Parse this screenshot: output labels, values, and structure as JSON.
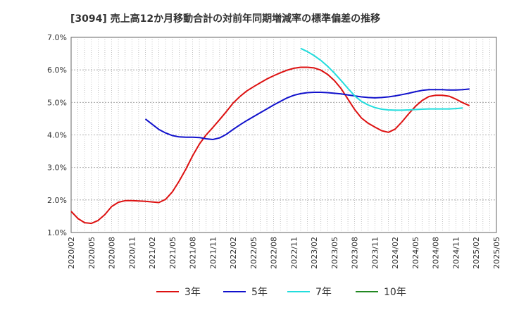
{
  "chart_data": {
    "type": "line",
    "title": "[3094]  売上高12か月移動合計の対前年同期増減率の標準偏差の推移",
    "xlabel": "",
    "ylabel": "",
    "ylim": [
      1.0,
      7.0
    ],
    "y_ticks": [
      "7.0%",
      "6.0%",
      "5.0%",
      "4.0%",
      "3.0%",
      "2.0%",
      "1.0%"
    ],
    "x_ticks": [
      "2020/02",
      "2020/05",
      "2020/08",
      "2020/11",
      "2021/02",
      "2021/05",
      "2021/08",
      "2021/11",
      "2022/02",
      "2022/05",
      "2022/08",
      "2022/11",
      "2023/02",
      "2023/05",
      "2023/08",
      "2023/11",
      "2024/02",
      "2024/05",
      "2024/08",
      "2024/11",
      "2025/02",
      "2025/05"
    ],
    "grid": true,
    "legend_position": "bottom",
    "series": [
      {
        "name": "3年",
        "color": "#dd1111",
        "points": [
          [
            "2020/02",
            1.65
          ],
          [
            "2020/03",
            1.43
          ],
          [
            "2020/04",
            1.3
          ],
          [
            "2020/05",
            1.28
          ],
          [
            "2020/06",
            1.37
          ],
          [
            "2020/07",
            1.55
          ],
          [
            "2020/08",
            1.8
          ],
          [
            "2020/09",
            1.93
          ],
          [
            "2020/10",
            1.98
          ],
          [
            "2020/11",
            1.98
          ],
          [
            "2020/12",
            1.97
          ],
          [
            "2021/01",
            1.96
          ],
          [
            "2021/02",
            1.94
          ],
          [
            "2021/03",
            1.92
          ],
          [
            "2021/04",
            2.02
          ],
          [
            "2021/05",
            2.25
          ],
          [
            "2021/06",
            2.58
          ],
          [
            "2021/07",
            2.95
          ],
          [
            "2021/08",
            3.36
          ],
          [
            "2021/09",
            3.72
          ],
          [
            "2021/10",
            4.0
          ],
          [
            "2021/11",
            4.23
          ],
          [
            "2021/12",
            4.47
          ],
          [
            "2022/01",
            4.72
          ],
          [
            "2022/02",
            4.98
          ],
          [
            "2022/03",
            5.18
          ],
          [
            "2022/04",
            5.35
          ],
          [
            "2022/05",
            5.48
          ],
          [
            "2022/06",
            5.6
          ],
          [
            "2022/07",
            5.72
          ],
          [
            "2022/08",
            5.82
          ],
          [
            "2022/09",
            5.91
          ],
          [
            "2022/10",
            5.99
          ],
          [
            "2022/11",
            6.05
          ],
          [
            "2022/12",
            6.08
          ],
          [
            "2023/01",
            6.08
          ],
          [
            "2023/02",
            6.06
          ],
          [
            "2023/03",
            5.99
          ],
          [
            "2023/04",
            5.86
          ],
          [
            "2023/05",
            5.67
          ],
          [
            "2023/06",
            5.42
          ],
          [
            "2023/07",
            5.1
          ],
          [
            "2023/08",
            4.78
          ],
          [
            "2023/09",
            4.52
          ],
          [
            "2023/10",
            4.36
          ],
          [
            "2023/11",
            4.24
          ],
          [
            "2023/12",
            4.13
          ],
          [
            "2024/01",
            4.08
          ],
          [
            "2024/02",
            4.18
          ],
          [
            "2024/03",
            4.4
          ],
          [
            "2024/04",
            4.65
          ],
          [
            "2024/05",
            4.88
          ],
          [
            "2024/06",
            5.06
          ],
          [
            "2024/07",
            5.18
          ],
          [
            "2024/08",
            5.22
          ],
          [
            "2024/09",
            5.22
          ],
          [
            "2024/10",
            5.19
          ],
          [
            "2024/11",
            5.1
          ],
          [
            "2024/12",
            4.99
          ],
          [
            "2025/01",
            4.9
          ]
        ]
      },
      {
        "name": "5年",
        "color": "#1111cc",
        "points": [
          [
            "2021/01",
            4.49
          ],
          [
            "2021/02",
            4.33
          ],
          [
            "2021/03",
            4.17
          ],
          [
            "2021/04",
            4.06
          ],
          [
            "2021/05",
            3.98
          ],
          [
            "2021/06",
            3.94
          ],
          [
            "2021/07",
            3.93
          ],
          [
            "2021/08",
            3.93
          ],
          [
            "2021/09",
            3.92
          ],
          [
            "2021/10",
            3.88
          ],
          [
            "2021/11",
            3.86
          ],
          [
            "2021/12",
            3.91
          ],
          [
            "2022/01",
            4.02
          ],
          [
            "2022/02",
            4.17
          ],
          [
            "2022/03",
            4.31
          ],
          [
            "2022/04",
            4.44
          ],
          [
            "2022/05",
            4.56
          ],
          [
            "2022/06",
            4.68
          ],
          [
            "2022/07",
            4.8
          ],
          [
            "2022/08",
            4.92
          ],
          [
            "2022/09",
            5.03
          ],
          [
            "2022/10",
            5.14
          ],
          [
            "2022/11",
            5.22
          ],
          [
            "2022/12",
            5.27
          ],
          [
            "2023/01",
            5.3
          ],
          [
            "2023/02",
            5.31
          ],
          [
            "2023/03",
            5.31
          ],
          [
            "2023/04",
            5.3
          ],
          [
            "2023/05",
            5.28
          ],
          [
            "2023/06",
            5.26
          ],
          [
            "2023/07",
            5.23
          ],
          [
            "2023/08",
            5.2
          ],
          [
            "2023/09",
            5.17
          ],
          [
            "2023/10",
            5.15
          ],
          [
            "2023/11",
            5.14
          ],
          [
            "2023/12",
            5.15
          ],
          [
            "2024/01",
            5.17
          ],
          [
            "2024/02",
            5.2
          ],
          [
            "2024/03",
            5.24
          ],
          [
            "2024/04",
            5.28
          ],
          [
            "2024/05",
            5.33
          ],
          [
            "2024/06",
            5.37
          ],
          [
            "2024/07",
            5.39
          ],
          [
            "2024/08",
            5.39
          ],
          [
            "2024/09",
            5.39
          ],
          [
            "2024/10",
            5.38
          ],
          [
            "2024/11",
            5.38
          ],
          [
            "2024/12",
            5.39
          ],
          [
            "2025/01",
            5.41
          ]
        ]
      },
      {
        "name": "7年",
        "color": "#22dddd",
        "points": [
          [
            "2022/12",
            6.66
          ],
          [
            "2023/01",
            6.56
          ],
          [
            "2023/02",
            6.44
          ],
          [
            "2023/03",
            6.29
          ],
          [
            "2023/04",
            6.11
          ],
          [
            "2023/05",
            5.9
          ],
          [
            "2023/06",
            5.67
          ],
          [
            "2023/07",
            5.43
          ],
          [
            "2023/08",
            5.2
          ],
          [
            "2023/09",
            5.03
          ],
          [
            "2023/10",
            4.92
          ],
          [
            "2023/11",
            4.84
          ],
          [
            "2023/12",
            4.79
          ],
          [
            "2024/01",
            4.77
          ],
          [
            "2024/02",
            4.76
          ],
          [
            "2024/03",
            4.76
          ],
          [
            "2024/04",
            4.77
          ],
          [
            "2024/05",
            4.78
          ],
          [
            "2024/06",
            4.79
          ],
          [
            "2024/07",
            4.8
          ],
          [
            "2024/08",
            4.8
          ],
          [
            "2024/09",
            4.8
          ],
          [
            "2024/10",
            4.8
          ],
          [
            "2024/11",
            4.81
          ],
          [
            "2024/12",
            4.83
          ]
        ]
      },
      {
        "name": "10年",
        "color": "#228822",
        "points": []
      }
    ]
  }
}
